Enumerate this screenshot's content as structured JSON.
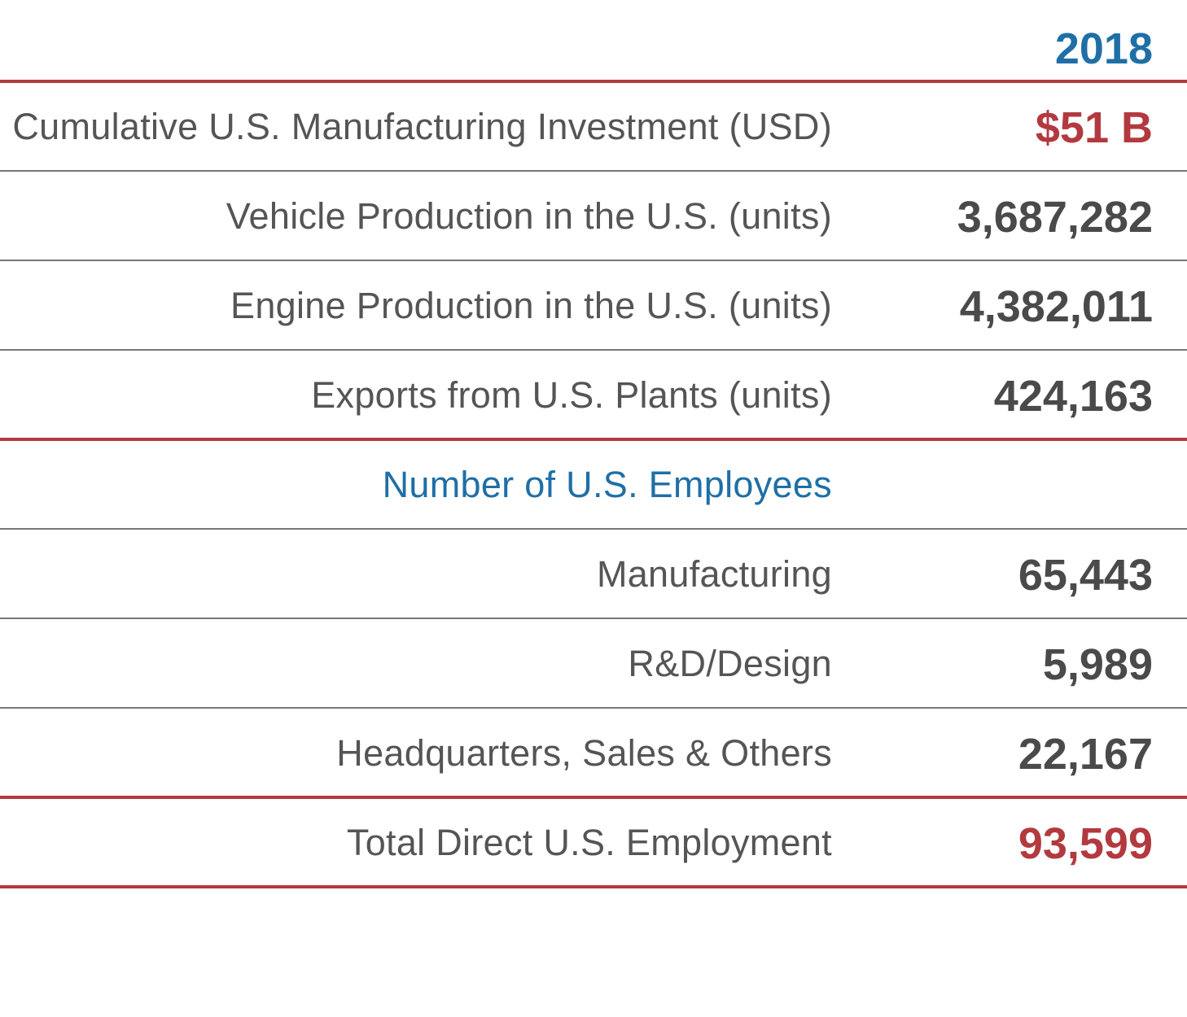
{
  "chart_data": {
    "type": "table",
    "column_header": "2018",
    "rows": [
      {
        "label": "Cumulative U.S. Manufacturing Investment (USD)",
        "value": "$51 B",
        "kind": "highlight"
      },
      {
        "label": "Vehicle Production in the U.S. (units)",
        "value": "3,687,282",
        "kind": "normal"
      },
      {
        "label": "Engine Production in the U.S. (units)",
        "value": "4,382,011",
        "kind": "normal"
      },
      {
        "label": "Exports from U.S. Plants (units)",
        "value": "424,163",
        "kind": "normal"
      },
      {
        "label": "Number of U.S. Employees",
        "value": "",
        "kind": "section"
      },
      {
        "label": "Manufacturing",
        "value": "65,443",
        "kind": "normal"
      },
      {
        "label": "R&D/Design",
        "value": "5,989",
        "kind": "normal"
      },
      {
        "label": "Headquarters, Sales & Others",
        "value": "22,167",
        "kind": "normal"
      },
      {
        "label": "Total Direct U.S. Employment",
        "value": "93,599",
        "kind": "highlight"
      }
    ]
  },
  "colors": {
    "header_blue": "#1f6fa6",
    "accent_red": "#b23a3f",
    "label_gray": "#555555",
    "value_gray": "#4a4a4a",
    "thin_rule": "#777777"
  }
}
